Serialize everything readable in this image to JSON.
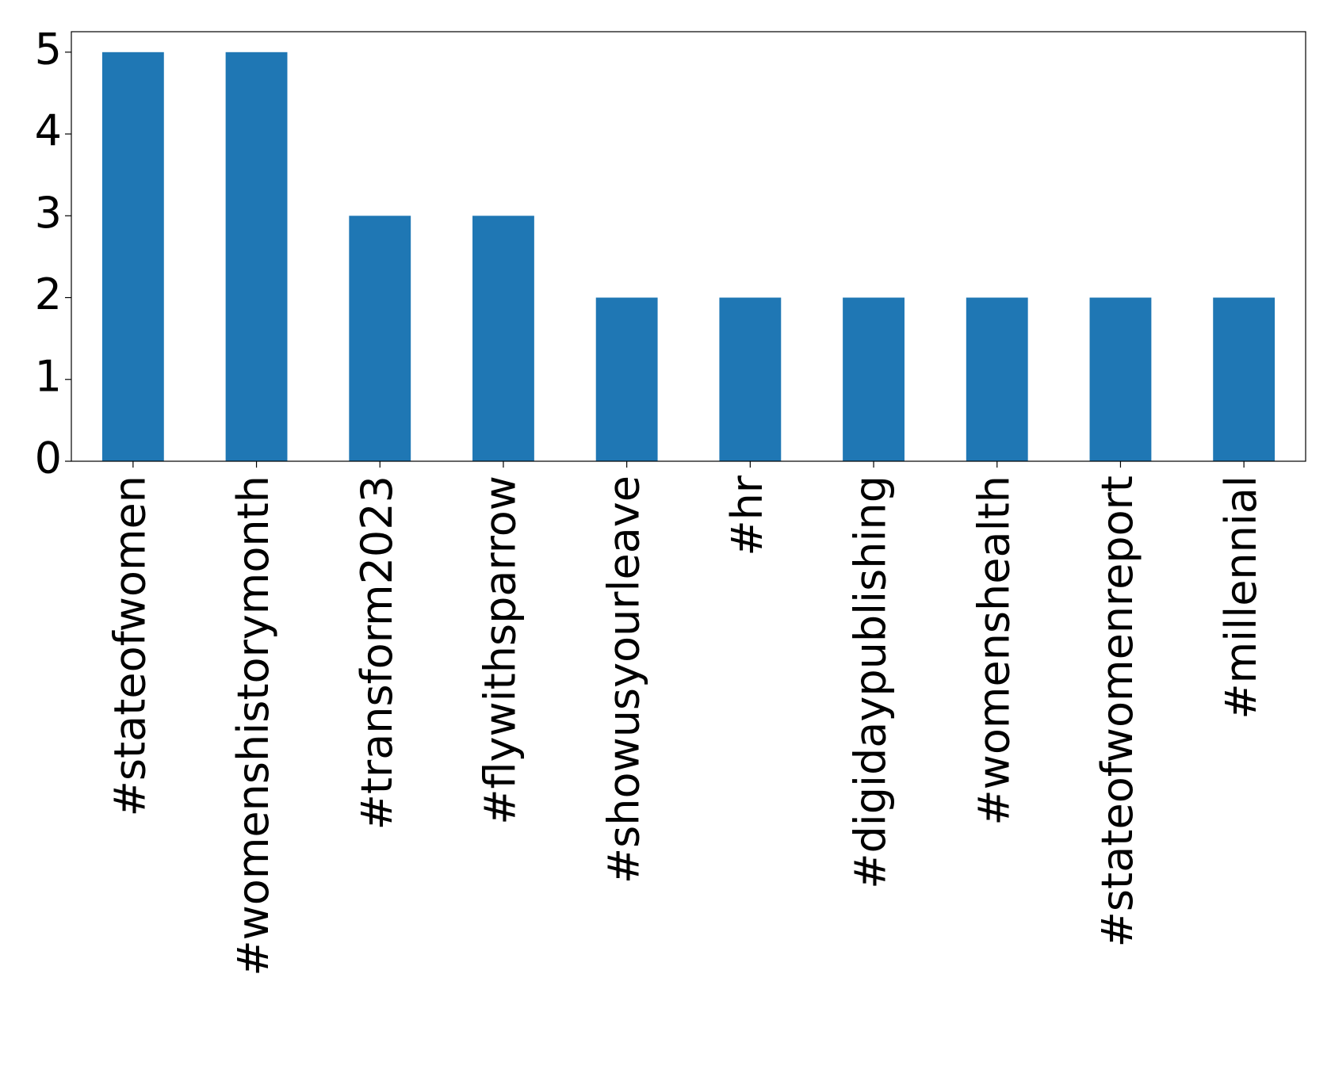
{
  "chart_data": {
    "type": "bar",
    "categories": [
      "#stateofwomen",
      "#womenshistorymonth",
      "#transform2023",
      "#flywithsparrow",
      "#showusyourleave",
      "#hr",
      "#digidaypublishing",
      "#womenshealth",
      "#stateofwomenreport",
      "#millennial"
    ],
    "values": [
      5,
      5,
      3,
      3,
      2,
      2,
      2,
      2,
      2,
      2
    ],
    "color": "#1f77b4",
    "ylim": [
      0,
      5.25
    ],
    "yticks": [
      0,
      1,
      2,
      3,
      4,
      5
    ],
    "grid": false
  }
}
